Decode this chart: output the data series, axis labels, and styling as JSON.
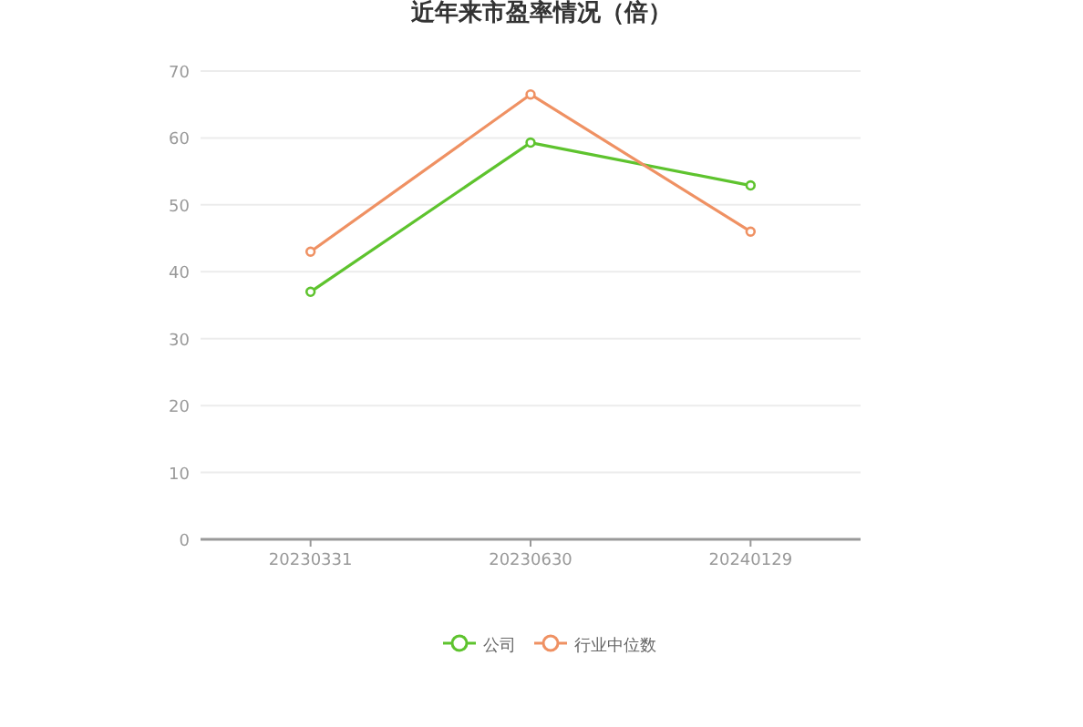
{
  "chart_data": {
    "type": "line",
    "title": "近年来市盈率情况（倍）",
    "categories": [
      "20230331",
      "20230630",
      "20240129"
    ],
    "series": [
      {
        "name": "公司",
        "color": "#5ec32e",
        "values": [
          37.0,
          59.3,
          52.9
        ]
      },
      {
        "name": "行业中位数",
        "color": "#ef9163",
        "values": [
          43.0,
          66.5,
          46.0
        ]
      }
    ],
    "ylim": [
      0,
      70
    ],
    "yticks": [
      0,
      10,
      20,
      30,
      40,
      50,
      60,
      70
    ],
    "grid": "y",
    "legend": "bottom",
    "marker": "circle"
  }
}
